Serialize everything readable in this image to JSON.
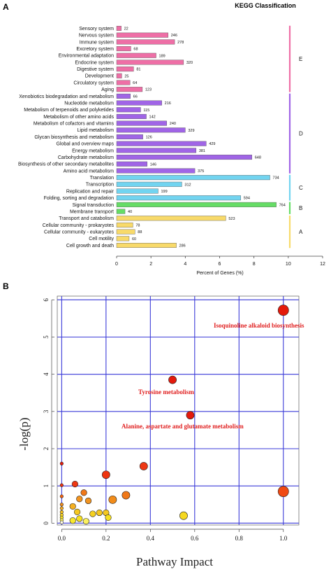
{
  "panel_a_letter": "A",
  "panel_b_letter": "B",
  "colors": {
    "E": "#ee6fa6",
    "D": "#a065e6",
    "C": "#72d4f0",
    "B": "#66dd66",
    "A": "#f8da6a",
    "grid_b": "#3a3ad8"
  },
  "chart_data": [
    {
      "type": "bar",
      "orientation": "horizontal",
      "title": "KEGG Classification",
      "xlabel": "Percent of Genes (%)",
      "xlim": [
        0,
        12
      ],
      "xticks": [
        "0",
        "2",
        "4",
        "6",
        "8",
        "10",
        "12"
      ],
      "groups": [
        {
          "name": "E",
          "color_key": "E",
          "categories": [
            "Sensory system",
            "Nervous system",
            "Immune system",
            "Excretory system",
            "Environmental adaptation",
            "Endocrine system",
            "Digestive system",
            "Development",
            "Circulatory system",
            "Aging"
          ]
        },
        {
          "name": "D",
          "color_key": "D",
          "categories": [
            "Xenobiotics biodegradation and metabolism",
            "Nucleotide metabolism",
            "Metabolism of terpenoids and polyketides",
            "Metabolism of other amino acids",
            "Metabolism of cofactors and vitamins",
            "Lipid metabolism",
            "Glycan biosynthesis and metabolism",
            "Global and overview maps",
            "Energy metabolism",
            "Carbohydrate metabolism",
            "Biosynthesis of other secondary metabolites",
            "Amino acid metabolism"
          ]
        },
        {
          "name": "C",
          "color_key": "C",
          "categories": [
            "Translation",
            "Transcription",
            "Replication and repair",
            "Folding, sorting and degradation"
          ]
        },
        {
          "name": "B",
          "color_key": "B",
          "categories": [
            "Signal transduction",
            "Membrane transport"
          ]
        },
        {
          "name": "A",
          "color_key": "A",
          "categories": [
            "Transport and catabolism",
            "Cellular community - prokaryotes",
            "Cellular community - eukaryotes",
            "Cell motility",
            "Cell growth and death"
          ]
        }
      ],
      "bars": [
        {
          "label": "Sensory system",
          "percent": 0.27,
          "count": "22",
          "group": "E"
        },
        {
          "label": "Nervous system",
          "percent": 3.0,
          "count": "246",
          "group": "E"
        },
        {
          "label": "Immune system",
          "percent": 3.38,
          "count": "278",
          "group": "E"
        },
        {
          "label": "Excretory system",
          "percent": 0.83,
          "count": "68",
          "group": "E"
        },
        {
          "label": "Environmental adaptation",
          "percent": 2.3,
          "count": "189",
          "group": "E"
        },
        {
          "label": "Endocrine system",
          "percent": 3.9,
          "count": "320",
          "group": "E"
        },
        {
          "label": "Digestive system",
          "percent": 0.99,
          "count": "81",
          "group": "E"
        },
        {
          "label": "Development",
          "percent": 0.3,
          "count": "25",
          "group": "E"
        },
        {
          "label": "Circulatory system",
          "percent": 0.78,
          "count": "64",
          "group": "E"
        },
        {
          "label": "Aging",
          "percent": 1.5,
          "count": "123",
          "group": "E"
        },
        {
          "label": "Xenobiotics biodegradation and metabolism",
          "percent": 0.8,
          "count": "66",
          "group": "D"
        },
        {
          "label": "Nucleotide metabolism",
          "percent": 2.63,
          "count": "216",
          "group": "D"
        },
        {
          "label": "Metabolism of terpenoids and polyketides",
          "percent": 1.4,
          "count": "115",
          "group": "D"
        },
        {
          "label": "Metabolism of other amino acids",
          "percent": 1.73,
          "count": "142",
          "group": "D"
        },
        {
          "label": "Metabolism of cofactors and vitamins",
          "percent": 2.92,
          "count": "240",
          "group": "D"
        },
        {
          "label": "Lipid metabolism",
          "percent": 4.0,
          "count": "329",
          "group": "D"
        },
        {
          "label": "Glycan biosynthesis and metabolism",
          "percent": 1.53,
          "count": "126",
          "group": "D"
        },
        {
          "label": "Global and overview maps",
          "percent": 5.22,
          "count": "429",
          "group": "D"
        },
        {
          "label": "Energy metabolism",
          "percent": 4.63,
          "count": "381",
          "group": "D"
        },
        {
          "label": "Carbohydrate metabolism",
          "percent": 7.88,
          "count": "648",
          "group": "D"
        },
        {
          "label": "Biosynthesis of other secondary metabolites",
          "percent": 1.78,
          "count": "146",
          "group": "D"
        },
        {
          "label": "Amino acid metabolism",
          "percent": 4.56,
          "count": "375",
          "group": "D"
        },
        {
          "label": "Translation",
          "percent": 8.93,
          "count": "734",
          "group": "C"
        },
        {
          "label": "Transcription",
          "percent": 3.8,
          "count": "312",
          "group": "C"
        },
        {
          "label": "Replication and repair",
          "percent": 2.42,
          "count": "199",
          "group": "C"
        },
        {
          "label": "Folding, sorting and degradation",
          "percent": 7.23,
          "count": "594",
          "group": "C"
        },
        {
          "label": "Signal transduction",
          "percent": 9.3,
          "count": "764",
          "group": "B"
        },
        {
          "label": "Membrane transport",
          "percent": 0.49,
          "count": "40",
          "group": "B"
        },
        {
          "label": "Transport and catabolism",
          "percent": 6.36,
          "count": "523",
          "group": "A"
        },
        {
          "label": "Cellular community - prokaryotes",
          "percent": 0.95,
          "count": "78",
          "group": "A"
        },
        {
          "label": "Cellular community - eukaryotes",
          "percent": 1.07,
          "count": "88",
          "group": "A"
        },
        {
          "label": "Cell motility",
          "percent": 0.73,
          "count": "60",
          "group": "A"
        },
        {
          "label": "Cell growth and death",
          "percent": 3.48,
          "count": "286",
          "group": "A"
        }
      ]
    },
    {
      "type": "scatter",
      "xlabel": "Pathway Impact",
      "ylabel": "-log(p)",
      "xlim": [
        -0.02,
        1.07
      ],
      "ylim": [
        -0.05,
        6.1
      ],
      "xticks": [
        "0.0",
        "0.2",
        "0.4",
        "0.6",
        "0.8",
        "1.0"
      ],
      "yticks": [
        "0",
        "1",
        "2",
        "3",
        "4",
        "5",
        "6"
      ],
      "grid": true,
      "annotations": [
        {
          "text": "Isoquinoline alkaloid biosynthesis",
          "x": 1.0,
          "y": 5.7
        },
        {
          "text": "Tyrosine metabolism",
          "x": 0.5,
          "y": 3.85
        },
        {
          "text": "Alanine, aspartate and glutamate metabolism",
          "x": 0.58,
          "y": 2.9
        }
      ],
      "points": [
        {
          "x": 1.0,
          "y": 5.72,
          "size": 3,
          "color": "#e41a0c"
        },
        {
          "x": 0.5,
          "y": 3.85,
          "size": 2,
          "color": "#e41a0c"
        },
        {
          "x": 0.58,
          "y": 2.9,
          "size": 2,
          "color": "#e41a0c"
        },
        {
          "x": 0.37,
          "y": 1.53,
          "size": 2,
          "color": "#ee3814"
        },
        {
          "x": 1.0,
          "y": 0.85,
          "size": 3,
          "color": "#f04a14"
        },
        {
          "x": 0.2,
          "y": 1.3,
          "size": 2,
          "color": "#ee3410"
        },
        {
          "x": 0.06,
          "y": 1.05,
          "size": 1,
          "color": "#ee3814"
        },
        {
          "x": 0.29,
          "y": 0.75,
          "size": 2,
          "color": "#f07818"
        },
        {
          "x": 0.23,
          "y": 0.63,
          "size": 2,
          "color": "#f28c1a"
        },
        {
          "x": 0.55,
          "y": 0.2,
          "size": 2,
          "color": "#f5d820"
        },
        {
          "x": 0.1,
          "y": 0.82,
          "size": 1,
          "color": "#f07818"
        },
        {
          "x": 0.08,
          "y": 0.65,
          "size": 1,
          "color": "#f29420"
        },
        {
          "x": 0.12,
          "y": 0.6,
          "size": 1,
          "color": "#f29420"
        },
        {
          "x": 0.05,
          "y": 0.45,
          "size": 1,
          "color": "#f5b020"
        },
        {
          "x": 0.07,
          "y": 0.3,
          "size": 1,
          "color": "#f5c820"
        },
        {
          "x": 0.17,
          "y": 0.28,
          "size": 1,
          "color": "#f5c820"
        },
        {
          "x": 0.2,
          "y": 0.28,
          "size": 1,
          "color": "#f5c820"
        },
        {
          "x": 0.21,
          "y": 0.15,
          "size": 1,
          "color": "#f7e020"
        },
        {
          "x": 0.14,
          "y": 0.25,
          "size": 1,
          "color": "#f5d020"
        },
        {
          "x": 0.08,
          "y": 0.12,
          "size": 1,
          "color": "#f7e020"
        },
        {
          "x": 0.05,
          "y": 0.07,
          "size": 1,
          "color": "#f8e830"
        },
        {
          "x": 0.11,
          "y": 0.05,
          "size": 1,
          "color": "#faf060"
        },
        {
          "x": 0.0,
          "y": 1.6,
          "size": 0,
          "color": "#e41a0c"
        },
        {
          "x": 0.0,
          "y": 1.02,
          "size": 0,
          "color": "#ee3410"
        },
        {
          "x": 0.0,
          "y": 0.72,
          "size": 0,
          "color": "#f06010"
        },
        {
          "x": 0.0,
          "y": 0.5,
          "size": 0,
          "color": "#f28c1a"
        },
        {
          "x": 0.0,
          "y": 0.4,
          "size": 0,
          "color": "#f5a81e"
        },
        {
          "x": 0.0,
          "y": 0.3,
          "size": 0,
          "color": "#f5c020"
        },
        {
          "x": 0.0,
          "y": 0.22,
          "size": 0,
          "color": "#f5d020"
        },
        {
          "x": 0.0,
          "y": 0.15,
          "size": 0,
          "color": "#f7e020"
        },
        {
          "x": 0.0,
          "y": 0.08,
          "size": 0,
          "color": "#faf060"
        },
        {
          "x": 0.0,
          "y": 0.02,
          "size": 0,
          "color": "#fffbe0"
        }
      ]
    }
  ]
}
